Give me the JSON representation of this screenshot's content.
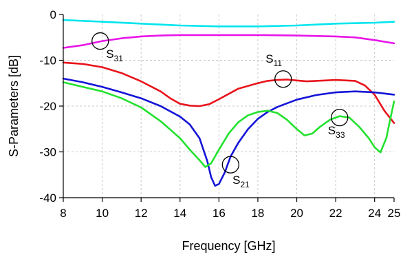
{
  "chart_data": {
    "type": "line",
    "title": "",
    "xlabel": "Frequency [GHz]",
    "ylabel": "S-Parameters [dB]",
    "xlim": [
      8,
      25
    ],
    "ylim": [
      -40,
      0
    ],
    "x_ticks": [
      8,
      10,
      12,
      14,
      16,
      18,
      20,
      22,
      24,
      25
    ],
    "x_tick_labels": [
      "8",
      "10",
      "12",
      "14",
      "16",
      "18",
      "20",
      "22",
      "24",
      "25"
    ],
    "y_ticks": [
      0,
      -10,
      -20,
      -30,
      -40
    ],
    "y_tick_labels": [
      "0",
      "-10",
      "-20",
      "-30",
      "-40"
    ],
    "grid": "dashed",
    "legend": "none",
    "series": [
      {
        "color": "#00e5ee",
        "points": [
          [
            8,
            -1.2
          ],
          [
            10,
            -1.6
          ],
          [
            12,
            -2.0
          ],
          [
            14,
            -2.4
          ],
          [
            16,
            -2.6
          ],
          [
            18,
            -2.6
          ],
          [
            20,
            -2.4
          ],
          [
            22,
            -2.0
          ],
          [
            24,
            -1.8
          ],
          [
            25,
            -1.6
          ]
        ]
      },
      {
        "color": "#e815e8",
        "points": [
          [
            8,
            -7.3
          ],
          [
            9,
            -6.7
          ],
          [
            10,
            -5.8
          ],
          [
            11,
            -5.2
          ],
          [
            12,
            -4.8
          ],
          [
            13,
            -4.6
          ],
          [
            14,
            -4.5
          ],
          [
            16,
            -4.5
          ],
          [
            18,
            -4.5
          ],
          [
            20,
            -4.6
          ],
          [
            22,
            -4.8
          ],
          [
            23,
            -5.0
          ],
          [
            24,
            -5.6
          ],
          [
            25,
            -6.3
          ]
        ]
      },
      {
        "color": "#e8141c",
        "points": [
          [
            8,
            -10.5
          ],
          [
            9,
            -10.8
          ],
          [
            10,
            -11.5
          ],
          [
            11,
            -12.8
          ],
          [
            12,
            -14.6
          ],
          [
            13,
            -16.8
          ],
          [
            13.5,
            -18.3
          ],
          [
            14,
            -19.5
          ],
          [
            14.5,
            -19.9
          ],
          [
            15,
            -20.0
          ],
          [
            15.5,
            -19.6
          ],
          [
            16,
            -18.5
          ],
          [
            17,
            -16.2
          ],
          [
            18,
            -15.0
          ],
          [
            18.5,
            -14.5
          ],
          [
            19,
            -14.3
          ],
          [
            19.5,
            -14.2
          ],
          [
            20,
            -14.4
          ],
          [
            20.5,
            -14.6
          ],
          [
            21,
            -14.5
          ],
          [
            22,
            -14.3
          ],
          [
            23,
            -14.5
          ],
          [
            23.5,
            -15.5
          ],
          [
            24,
            -17.5
          ],
          [
            24.5,
            -21.0
          ],
          [
            25,
            -23.7
          ]
        ]
      },
      {
        "color": "#1414d8",
        "points": [
          [
            8,
            -14.0
          ],
          [
            9,
            -14.8
          ],
          [
            10,
            -15.8
          ],
          [
            11,
            -17.0
          ],
          [
            12,
            -18.3
          ],
          [
            13,
            -20.0
          ],
          [
            14,
            -22.3
          ],
          [
            14.5,
            -24.0
          ],
          [
            15,
            -27.0
          ],
          [
            15.4,
            -32.0
          ],
          [
            15.6,
            -35.5
          ],
          [
            15.8,
            -37.4
          ],
          [
            16,
            -37.0
          ],
          [
            16.3,
            -34.5
          ],
          [
            16.6,
            -31.0
          ],
          [
            17,
            -28.0
          ],
          [
            17.5,
            -25.0
          ],
          [
            18,
            -22.8
          ],
          [
            18.5,
            -21.3
          ],
          [
            19,
            -20.2
          ],
          [
            20,
            -18.6
          ],
          [
            21,
            -17.6
          ],
          [
            22,
            -17.0
          ],
          [
            23,
            -16.8
          ],
          [
            24,
            -17.0
          ],
          [
            25,
            -17.5
          ]
        ]
      },
      {
        "color": "#22e22e",
        "points": [
          [
            8,
            -14.8
          ],
          [
            9,
            -15.8
          ],
          [
            10,
            -16.8
          ],
          [
            11,
            -18.3
          ],
          [
            12,
            -20.3
          ],
          [
            13,
            -23.3
          ],
          [
            14,
            -27.0
          ],
          [
            14.5,
            -29.5
          ],
          [
            15,
            -31.8
          ],
          [
            15.3,
            -33.3
          ],
          [
            15.6,
            -32.5
          ],
          [
            16,
            -29.5
          ],
          [
            16.5,
            -26.0
          ],
          [
            17,
            -23.5
          ],
          [
            17.5,
            -22.0
          ],
          [
            18,
            -21.3
          ],
          [
            18.5,
            -21.0
          ],
          [
            19,
            -21.5
          ],
          [
            19.5,
            -23.0
          ],
          [
            20,
            -25.0
          ],
          [
            20.4,
            -26.4
          ],
          [
            20.8,
            -26.0
          ],
          [
            21.2,
            -24.5
          ],
          [
            21.7,
            -23.0
          ],
          [
            22.2,
            -22.2
          ],
          [
            22.7,
            -22.5
          ],
          [
            23.2,
            -24.5
          ],
          [
            23.7,
            -27.0
          ],
          [
            24,
            -29.0
          ],
          [
            24.3,
            -30.1
          ],
          [
            24.6,
            -27.0
          ],
          [
            24.8,
            -23.0
          ],
          [
            25,
            -19.0
          ]
        ]
      }
    ],
    "annotations": [
      {
        "label": "S",
        "sub": "31",
        "circle": [
          9.9,
          -5.8
        ],
        "text": [
          10.2,
          -9.5
        ]
      },
      {
        "label": "S",
        "sub": "11",
        "circle": [
          19.3,
          -14.1
        ],
        "text": [
          18.4,
          -10.5
        ]
      },
      {
        "label": "S",
        "sub": "21",
        "circle": [
          16.6,
          -32.8
        ],
        "text": [
          16.7,
          -37.0
        ]
      },
      {
        "label": "S",
        "sub": "33",
        "circle": [
          22.2,
          -22.5
        ],
        "text": [
          21.6,
          -26.2
        ]
      }
    ]
  }
}
